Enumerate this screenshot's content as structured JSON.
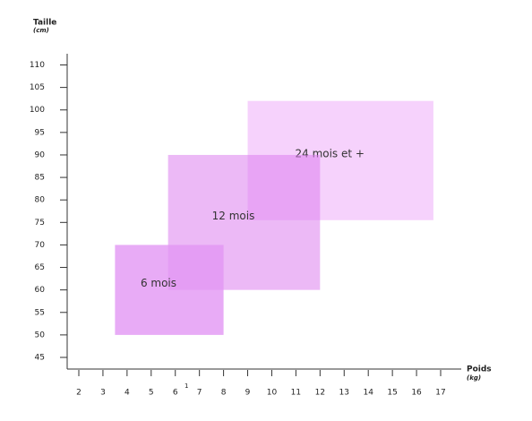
{
  "chart_data": {
    "type": "range-rect",
    "y_label": "Taille",
    "y_unit": "(cm)",
    "x_label": "Poids",
    "x_unit": "(kg)",
    "annotation": "1",
    "xlim": [
      2,
      17
    ],
    "xticks": [
      2,
      3,
      4,
      5,
      6,
      7,
      8,
      9,
      10,
      11,
      12,
      13,
      14,
      15,
      16,
      17
    ],
    "ylim": [
      45,
      110
    ],
    "yticks": [
      45,
      50,
      55,
      60,
      65,
      70,
      75,
      80,
      85,
      90,
      95,
      100,
      105,
      110
    ],
    "series": [
      {
        "name": "24 mois et +",
        "color": "#e98ef866",
        "x": [
          9,
          16.7
        ],
        "y": [
          75.5,
          102
        ]
      },
      {
        "name": "12 mois",
        "color": "#dc7cee88",
        "x": [
          5.7,
          12
        ],
        "y": [
          60,
          90
        ]
      },
      {
        "name": "6 mois",
        "color": "#e296f4cc",
        "x": [
          3.5,
          8
        ],
        "y": [
          50,
          70
        ]
      }
    ]
  }
}
